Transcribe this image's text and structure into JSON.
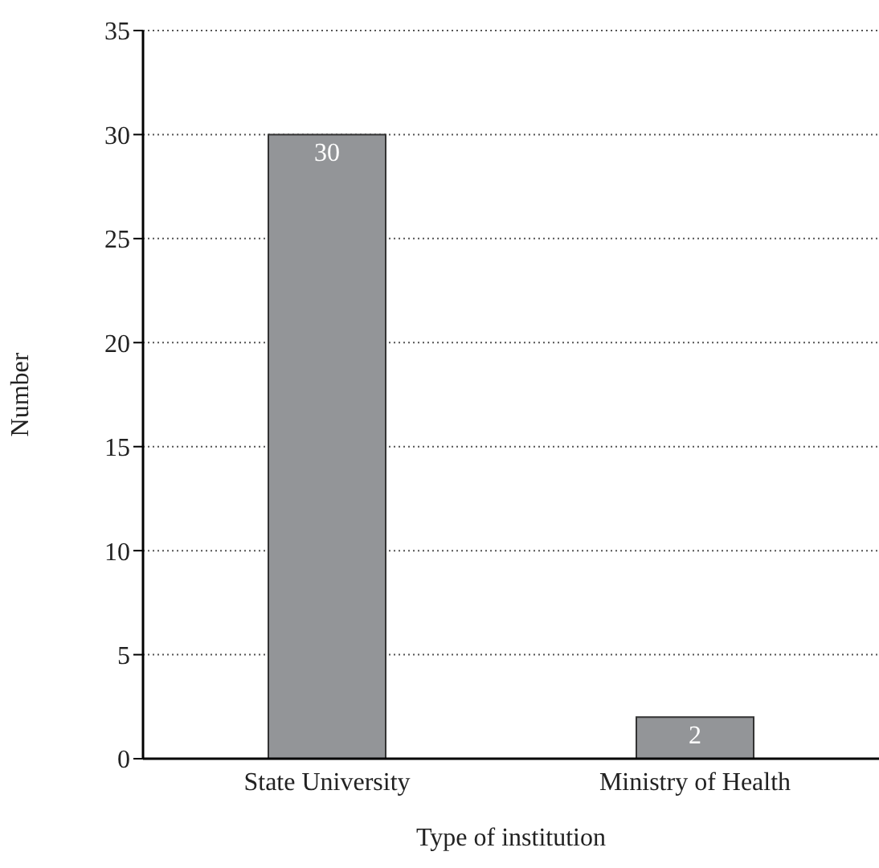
{
  "chart_data": {
    "type": "bar",
    "xlabel": "Type of institution",
    "ylabel": "Number",
    "categories": [
      "State University",
      "Ministry of Health"
    ],
    "values": [
      30,
      2
    ],
    "color": "#939598",
    "ylim": [
      0,
      35
    ],
    "yticks": [
      0,
      5,
      10,
      15,
      20,
      25,
      30,
      35
    ],
    "grid": "y",
    "data_labels": true
  }
}
